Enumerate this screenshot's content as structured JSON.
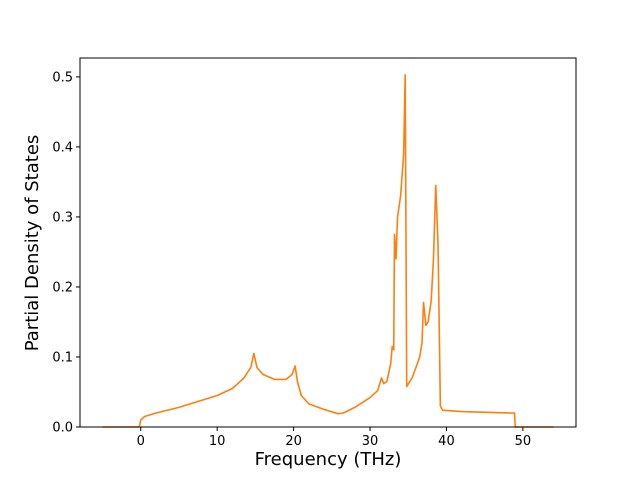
{
  "chart_data": {
    "type": "line",
    "x_label": "Frequency (THz)",
    "y_label": "Partial Density of States",
    "x": [
      -5,
      -0.2,
      0,
      0.5,
      2,
      5,
      10,
      12,
      13.5,
      14.4,
      14.8,
      15.2,
      16,
      17.5,
      19,
      19.8,
      20.2,
      20.5,
      21,
      22,
      24,
      25.8,
      26.5,
      28,
      30,
      31,
      31.5,
      31.8,
      32.2,
      32.7,
      32.9,
      33.1,
      33.2,
      33.4,
      33.6,
      34,
      34.4,
      34.6,
      34.8,
      35.5,
      36.5,
      36.8,
      37,
      37.3,
      37.6,
      38,
      38.3,
      38.6,
      38.9,
      39.2,
      39.5,
      42,
      48.5,
      48.9,
      49,
      54
    ],
    "series": [
      {
        "color": "#ff7f0e",
        "values": [
          0,
          0,
          0.01,
          0.015,
          0.02,
          0.028,
          0.045,
          0.055,
          0.07,
          0.085,
          0.105,
          0.085,
          0.075,
          0.068,
          0.068,
          0.075,
          0.087,
          0.065,
          0.045,
          0.033,
          0.025,
          0.019,
          0.02,
          0.028,
          0.042,
          0.052,
          0.07,
          0.062,
          0.065,
          0.09,
          0.115,
          0.11,
          0.275,
          0.24,
          0.3,
          0.33,
          0.39,
          0.503,
          0.058,
          0.07,
          0.1,
          0.12,
          0.178,
          0.145,
          0.15,
          0.18,
          0.24,
          0.345,
          0.26,
          0.03,
          0.024,
          0.022,
          0.02,
          0.02,
          0,
          0
        ]
      }
    ],
    "xlim": [
      -7.95,
      56.95
    ],
    "ylim": [
      0,
      0.527
    ],
    "xticks": [
      0,
      10,
      20,
      30,
      40,
      50
    ],
    "yticks": [
      {
        "value": 0,
        "label": "0.0"
      },
      0.1,
      0.2,
      0.3,
      0.4,
      0.5
    ]
  }
}
